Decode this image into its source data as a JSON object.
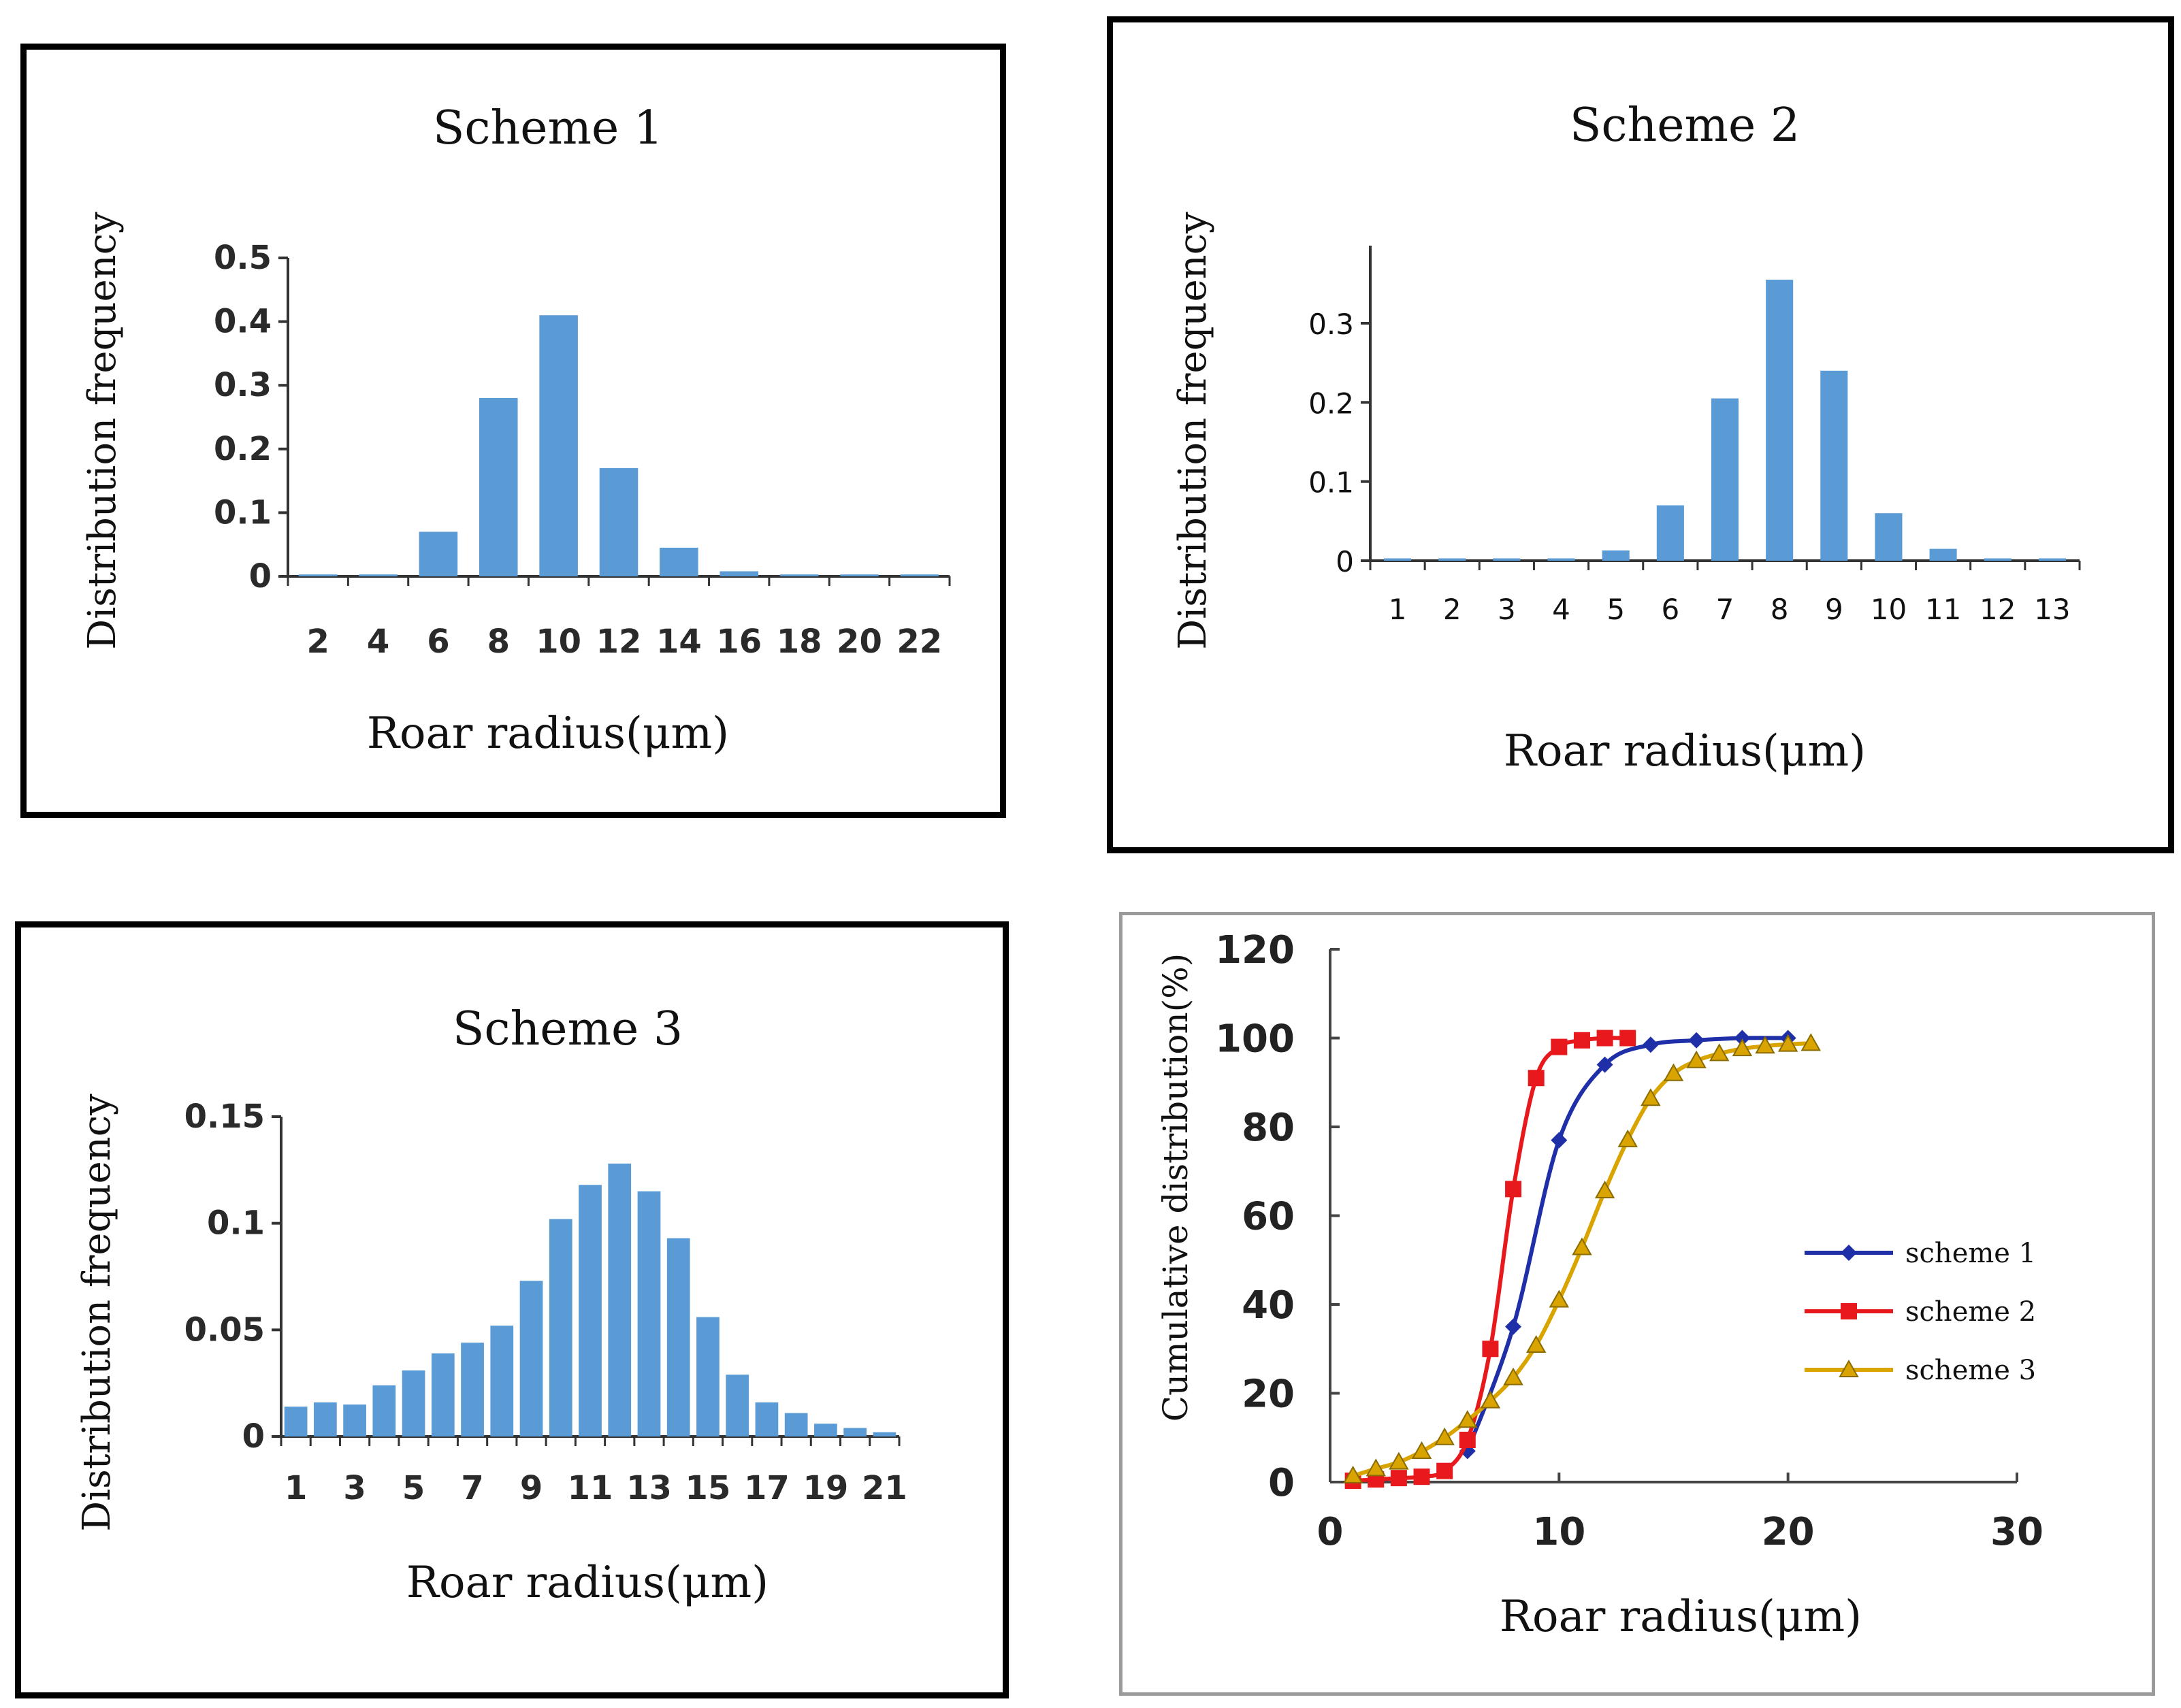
{
  "chart_data": [
    {
      "type": "bar",
      "title": "Scheme 1",
      "xlabel": "Roar radius(μm)",
      "ylabel": "Distribution frequency",
      "categories": [
        "2",
        "4",
        "6",
        "8",
        "10",
        "12",
        "14",
        "16",
        "18",
        "20",
        "22"
      ],
      "values": [
        0.003,
        0.003,
        0.07,
        0.28,
        0.41,
        0.17,
        0.045,
        0.008,
        0.003,
        0.003,
        0.003
      ],
      "yticks": [
        "0",
        "0.1",
        "0.2",
        "0.3",
        "0.4",
        "0.5"
      ],
      "ylim": [
        0,
        0.5
      ],
      "color": "#5b9bd5"
    },
    {
      "type": "bar",
      "title": "Scheme 2",
      "xlabel": "Roar radius(μm)",
      "ylabel": "Distribution frequency",
      "categories": [
        "1",
        "2",
        "3",
        "4",
        "5",
        "6",
        "7",
        "8",
        "9",
        "10",
        "11",
        "12",
        "13"
      ],
      "values": [
        0.003,
        0.003,
        0.003,
        0.003,
        0.013,
        0.07,
        0.205,
        0.355,
        0.24,
        0.06,
        0.015,
        0.003,
        0.003
      ],
      "yticks": [
        "0",
        "0.1",
        "0.2",
        "0.3"
      ],
      "ylim": [
        0,
        0.39
      ],
      "color": "#5b9bd5"
    },
    {
      "type": "bar",
      "title": "Scheme 3",
      "xlabel": "Roar radius(μm)",
      "ylabel": "Distribution frequency",
      "categories": [
        "1",
        "2",
        "3",
        "4",
        "5",
        "6",
        "7",
        "8",
        "9",
        "10",
        "11",
        "12",
        "13",
        "14",
        "15",
        "16",
        "17",
        "18",
        "19",
        "20",
        "21"
      ],
      "tick_labels": [
        "1",
        "3",
        "5",
        "7",
        "9",
        "11",
        "13",
        "15",
        "17",
        "19",
        "21"
      ],
      "values": [
        0.014,
        0.016,
        0.015,
        0.024,
        0.031,
        0.039,
        0.044,
        0.052,
        0.073,
        0.102,
        0.118,
        0.128,
        0.115,
        0.093,
        0.056,
        0.029,
        0.016,
        0.011,
        0.006,
        0.004,
        0.002
      ],
      "yticks": [
        "0",
        "0.05",
        "0.1",
        "0.15"
      ],
      "ylim": [
        0,
        0.15
      ],
      "color": "#5b9bd5"
    },
    {
      "type": "line",
      "xlabel": "Roar radius(μm)",
      "ylabel": "Cumulative distribution(%)",
      "xlim": [
        0,
        30
      ],
      "ylim": [
        0,
        120
      ],
      "xticks": [
        "0",
        "10",
        "20",
        "30"
      ],
      "yticks": [
        "0",
        "20",
        "40",
        "60",
        "80",
        "100",
        "120"
      ],
      "series": [
        {
          "name": "scheme 1",
          "color": "#1f2fa8",
          "marker": "diamond",
          "x": [
            6,
            8,
            10,
            12,
            14,
            16,
            18,
            20
          ],
          "y": [
            7,
            35,
            77,
            94,
            98.5,
            99.5,
            100,
            100
          ]
        },
        {
          "name": "scheme 2",
          "color": "#e8191c",
          "marker": "square",
          "x": [
            1,
            2,
            3,
            4,
            5,
            6,
            7,
            8,
            9,
            10,
            11,
            12,
            13
          ],
          "y": [
            0.3,
            0.6,
            0.9,
            1.2,
            2.5,
            9.5,
            30,
            66,
            91,
            98,
            99.5,
            100,
            100
          ]
        },
        {
          "name": "scheme 3",
          "color": "#d9a400",
          "marker": "triangle",
          "x": [
            1,
            2,
            3,
            4,
            5,
            6,
            7,
            8,
            9,
            10,
            11,
            12,
            13,
            14,
            15,
            16,
            17,
            18,
            19,
            20,
            21
          ],
          "y": [
            1.4,
            3,
            4.5,
            6.9,
            10,
            13.9,
            18.3,
            23.5,
            30.8,
            41,
            52.8,
            65.6,
            77.1,
            86.4,
            92,
            94.9,
            96.5,
            97.6,
            98.2,
            98.6,
            98.8
          ]
        }
      ]
    }
  ]
}
